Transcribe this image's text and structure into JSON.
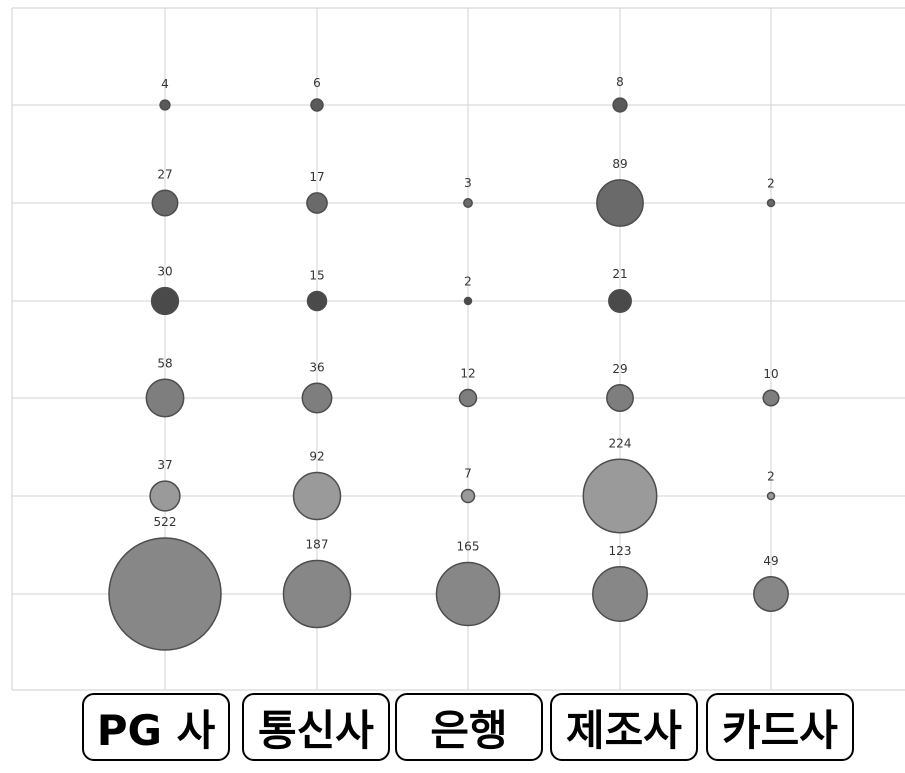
{
  "chart_data": {
    "type": "scatter",
    "subtype": "bubble",
    "categories": [
      "PG 사",
      "통신사",
      "은행",
      "제조사",
      "카드사"
    ],
    "rows": 6,
    "grid": true,
    "legend": "none",
    "points": [
      {
        "category": "PG 사",
        "row": 1,
        "value": 4
      },
      {
        "category": "통신사",
        "row": 1,
        "value": 6
      },
      {
        "category": "제조사",
        "row": 1,
        "value": 8
      },
      {
        "category": "PG 사",
        "row": 2,
        "value": 27
      },
      {
        "category": "통신사",
        "row": 2,
        "value": 17
      },
      {
        "category": "은행",
        "row": 2,
        "value": 3
      },
      {
        "category": "제조사",
        "row": 2,
        "value": 89
      },
      {
        "category": "카드사",
        "row": 2,
        "value": 2
      },
      {
        "category": "PG 사",
        "row": 3,
        "value": 30
      },
      {
        "category": "통신사",
        "row": 3,
        "value": 15
      },
      {
        "category": "은행",
        "row": 3,
        "value": 2
      },
      {
        "category": "제조사",
        "row": 3,
        "value": 21
      },
      {
        "category": "PG 사",
        "row": 4,
        "value": 58
      },
      {
        "category": "통신사",
        "row": 4,
        "value": 36
      },
      {
        "category": "은행",
        "row": 4,
        "value": 12
      },
      {
        "category": "제조사",
        "row": 4,
        "value": 29
      },
      {
        "category": "카드사",
        "row": 4,
        "value": 10
      },
      {
        "category": "PG 사",
        "row": 5,
        "value": 37
      },
      {
        "category": "통신사",
        "row": 5,
        "value": 92
      },
      {
        "category": "은행",
        "row": 5,
        "value": 7
      },
      {
        "category": "제조사",
        "row": 5,
        "value": 224
      },
      {
        "category": "카드사",
        "row": 5,
        "value": 2
      },
      {
        "category": "PG 사",
        "row": 6,
        "value": 522
      },
      {
        "category": "통신사",
        "row": 6,
        "value": 187
      },
      {
        "category": "은행",
        "row": 6,
        "value": 165
      },
      {
        "category": "제조사",
        "row": 6,
        "value": 123
      },
      {
        "category": "카드사",
        "row": 6,
        "value": 49
      }
    ],
    "row_colors": [
      "#5a5a5a",
      "#6a6a6a",
      "#4a4a4a",
      "#7e7e7e",
      "#9a9a9a",
      "#878787"
    ],
    "stroke_color": "#4d4d4d",
    "grid_color": "#d3d3d3"
  }
}
